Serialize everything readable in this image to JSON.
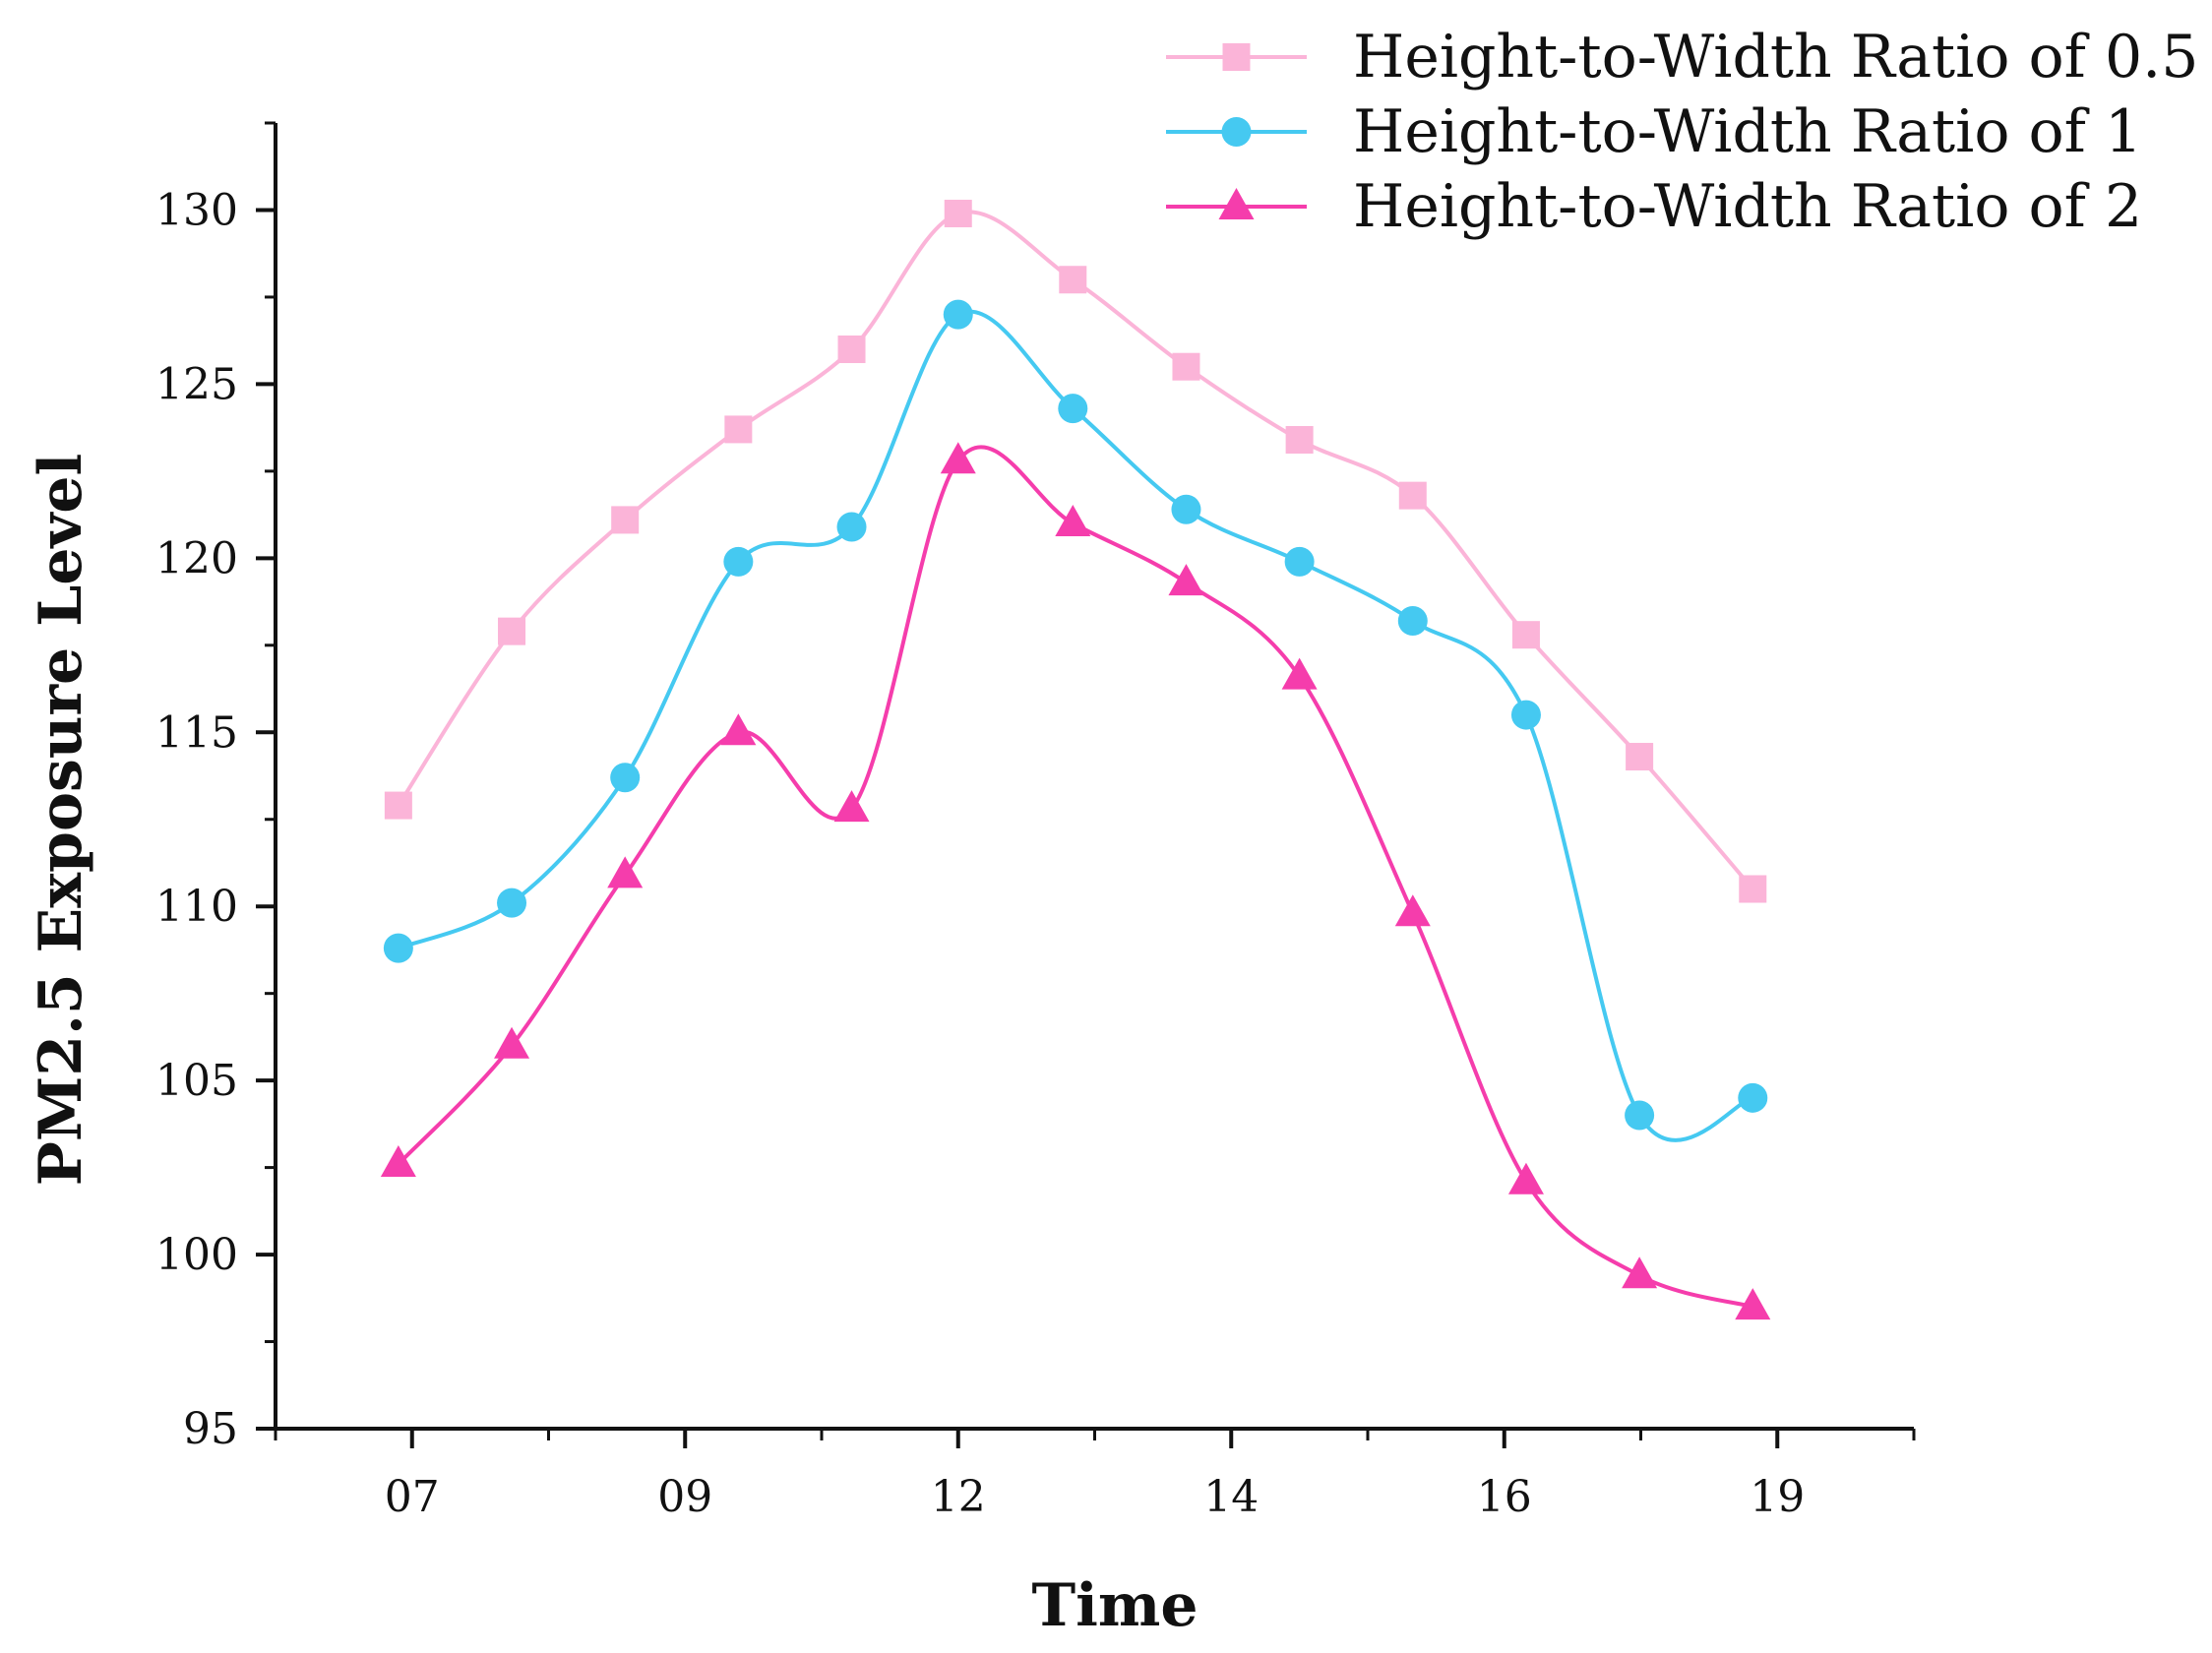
{
  "chart_data": {
    "type": "line",
    "title": "",
    "xlabel": "Time",
    "ylabel": "PM2.5 Exposure Level",
    "ylim": [
      95,
      132.5
    ],
    "yticks": [
      95,
      100,
      105,
      110,
      115,
      120,
      125,
      130
    ],
    "xtick_labels": [
      "07",
      "09",
      "12",
      "14",
      "16",
      "19"
    ],
    "xtick_positions": [
      1,
      3,
      5,
      7,
      9,
      11
    ],
    "xlim": [
      0,
      12
    ],
    "x": [
      0.9,
      1.73,
      2.56,
      3.39,
      4.22,
      5.0,
      5.84,
      6.67,
      7.5,
      8.33,
      9.16,
      9.99,
      10.82
    ],
    "grid": false,
    "legend_position": "top-right",
    "series": [
      {
        "name": "Height-to-Width Ratio of 0.5",
        "color": "#fbb4d8",
        "marker": "square",
        "values": [
          112.9,
          117.9,
          121.1,
          123.7,
          126.0,
          129.9,
          128.0,
          125.5,
          123.4,
          121.8,
          117.8,
          114.3,
          110.5
        ]
      },
      {
        "name": "Height-to-Width Ratio of 1",
        "color": "#45c9f1",
        "marker": "circle",
        "values": [
          108.8,
          110.1,
          113.7,
          119.9,
          120.9,
          127.0,
          124.3,
          121.4,
          119.9,
          118.2,
          115.5,
          104.0,
          104.5
        ]
      },
      {
        "name": "Height-to-Width Ratio of 2",
        "color": "#f53dac",
        "marker": "triangle",
        "values": [
          102.6,
          106.0,
          110.9,
          115.0,
          112.8,
          122.8,
          121.0,
          119.3,
          116.6,
          109.8,
          102.1,
          99.4,
          98.5
        ]
      }
    ]
  }
}
